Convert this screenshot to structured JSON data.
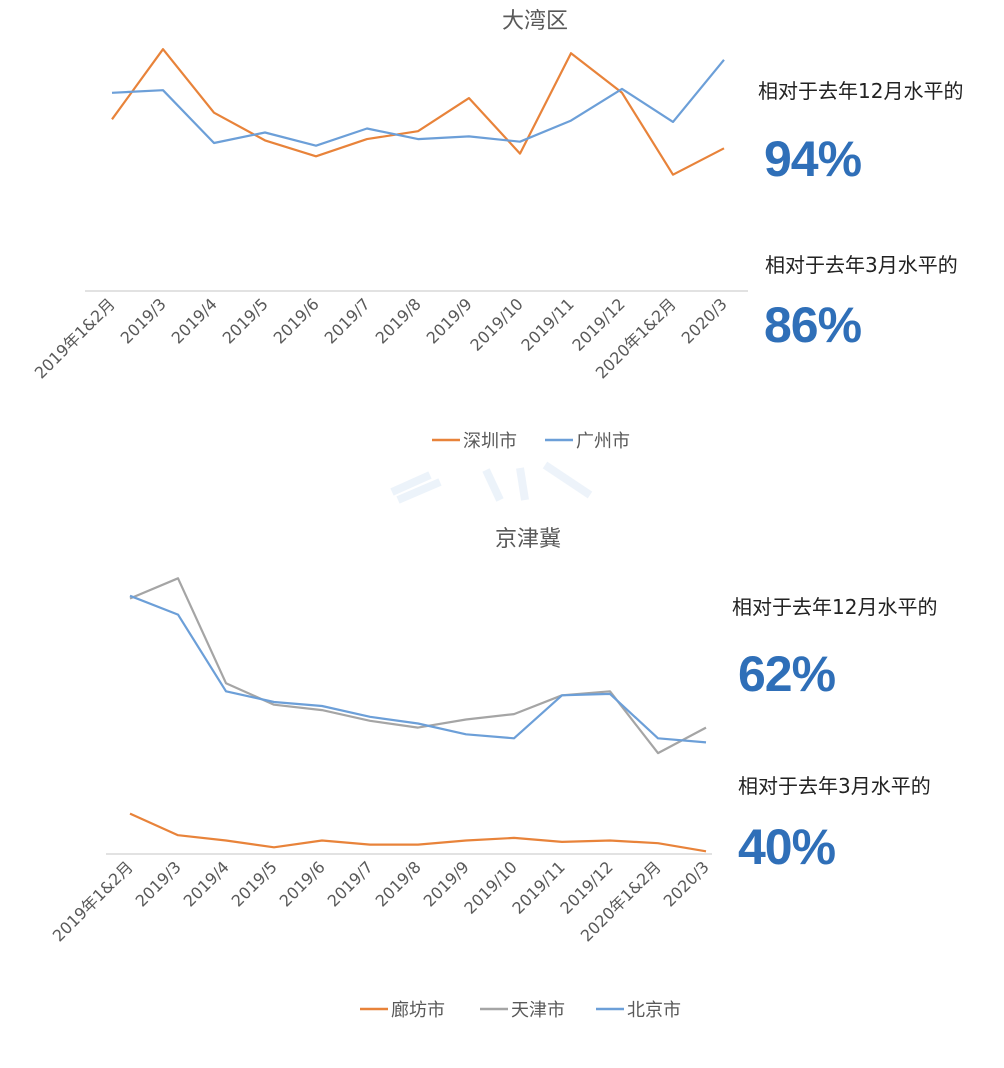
{
  "colors": {
    "orange": "#e8833a",
    "gray": "#a5a5a5",
    "blue": "#6c9fd8",
    "accent": "#2f6fb8",
    "axis": "#d9d9d9",
    "text": "#595959"
  },
  "chart_data": [
    {
      "type": "line",
      "title": "大湾区",
      "categories": [
        "2019年1&2月",
        "2019/3",
        "2019/4",
        "2019/5",
        "2019/6",
        "2019/7",
        "2019/8",
        "2019/9",
        "2019/10",
        "2019/11",
        "2019/12",
        "2020年1&2月",
        "2020/3"
      ],
      "ylim": [
        0,
        190
      ],
      "grid": false,
      "legend": "bottom",
      "series": [
        {
          "name": "深圳市",
          "color": "#e8833a",
          "values": [
            130,
            183,
            135,
            114,
            102,
            115,
            121,
            146,
            104,
            180,
            150,
            88,
            108
          ]
        },
        {
          "name": "广州市",
          "color": "#6c9fd8",
          "values": [
            150,
            152,
            112,
            120,
            110,
            123,
            115,
            117,
            113,
            129,
            153,
            128,
            175
          ]
        }
      ],
      "annotations": [
        {
          "label": "相对于去年12月水平的",
          "value": "94%"
        },
        {
          "label": "相对于去年3月水平的",
          "value": "86%"
        }
      ]
    },
    {
      "type": "line",
      "title": "京津冀",
      "categories": [
        "2019年1&2月",
        "2019/3",
        "2019/4",
        "2019/5",
        "2019/6",
        "2019/7",
        "2019/8",
        "2019/9",
        "2019/10",
        "2019/11",
        "2019/12",
        "2020年1&2月",
        "2020/3"
      ],
      "ylim": [
        0,
        200
      ],
      "grid": false,
      "legend": "bottom",
      "series": [
        {
          "name": "廊坊市",
          "color": "#e8833a",
          "values": [
            30,
            14,
            10,
            5,
            10,
            7,
            7,
            10,
            12,
            9,
            10,
            8,
            2
          ]
        },
        {
          "name": "天津市",
          "color": "#a5a5a5",
          "values": [
            190,
            205,
            127,
            111,
            107,
            99,
            94,
            100,
            104,
            118,
            121,
            75,
            94
          ]
        },
        {
          "name": "北京市",
          "color": "#6c9fd8",
          "values": [
            192,
            178,
            121,
            113,
            110,
            102,
            97,
            89,
            86,
            118,
            119,
            86,
            83
          ]
        }
      ],
      "annotations": [
        {
          "label": "相对于去年12月水平的",
          "value": "62%"
        },
        {
          "label": "相对于去年3月水平的",
          "value": "40%"
        }
      ]
    }
  ]
}
